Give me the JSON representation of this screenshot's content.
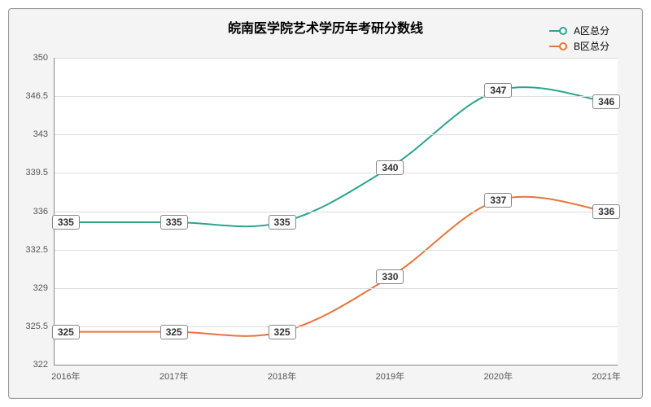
{
  "chart": {
    "title": "皖南医学院艺术学历年考研分数线",
    "title_fontsize": 16,
    "background_color": "#f4f4f4",
    "plot_background_color": "#ffffff",
    "grid_color": "#dddddd",
    "axis_color": "#888888",
    "text_color": "#333333",
    "label_fontsize": 11,
    "datalabel_fontsize": 12,
    "x": {
      "categories": [
        "2016年",
        "2017年",
        "2018年",
        "2019年",
        "2020年",
        "2021年"
      ]
    },
    "y": {
      "min": 322,
      "max": 350,
      "step": 3.5,
      "ticks": [
        322,
        325.5,
        329,
        332.5,
        336,
        339.5,
        343,
        346.5,
        350
      ]
    },
    "series": [
      {
        "name": "A区总分",
        "color": "#2ca58d",
        "line_width": 2,
        "marker_radius": 4,
        "data": [
          335,
          335,
          335,
          340,
          347,
          346
        ]
      },
      {
        "name": "B区总分",
        "color": "#e8743b",
        "line_width": 2,
        "marker_radius": 4,
        "data": [
          325,
          325,
          325,
          330,
          337,
          336
        ]
      }
    ]
  }
}
